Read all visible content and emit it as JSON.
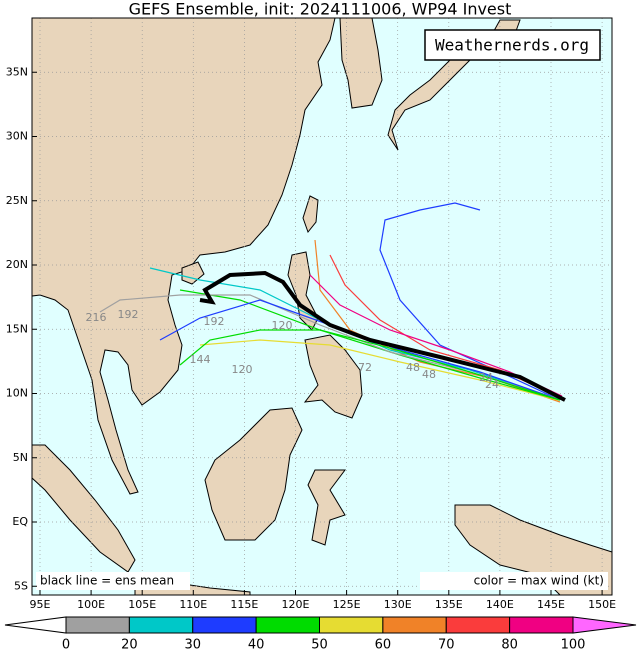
{
  "title": "GEFS Ensemble, init: 2024111006, WP94 Invest",
  "watermark": "Weathernerds.org",
  "map": {
    "lat_ticks": [
      {
        "value": 35,
        "label": "35N"
      },
      {
        "value": 30,
        "label": "30N"
      },
      {
        "value": 25,
        "label": "25N"
      },
      {
        "value": 20,
        "label": "20N"
      },
      {
        "value": 15,
        "label": "15N"
      },
      {
        "value": 10,
        "label": "10N"
      },
      {
        "value": 5,
        "label": "5N"
      },
      {
        "value": 0,
        "label": "EQ"
      },
      {
        "value": -5,
        "label": "5S"
      }
    ],
    "lon_ticks": [
      {
        "value": 95,
        "label": "95E"
      },
      {
        "value": 100,
        "label": "100E"
      },
      {
        "value": 105,
        "label": "105E"
      },
      {
        "value": 110,
        "label": "110E"
      },
      {
        "value": 115,
        "label": "115E"
      },
      {
        "value": 120,
        "label": "120E"
      },
      {
        "value": 125,
        "label": "125E"
      },
      {
        "value": 130,
        "label": "130E"
      },
      {
        "value": 135,
        "label": "135E"
      },
      {
        "value": 140,
        "label": "140E"
      },
      {
        "value": 145,
        "label": "145E"
      },
      {
        "value": 150,
        "label": "150E"
      }
    ]
  },
  "hour_labels": [
    216,
    192,
    192,
    144,
    120,
    120,
    72,
    48,
    48,
    24,
    24
  ],
  "legend": {
    "mean": "black line = ens mean",
    "color": "color = max wind (kt)"
  },
  "colorbar": {
    "ticks": [
      0,
      20,
      30,
      40,
      50,
      60,
      70,
      80,
      100
    ],
    "colors": [
      "#a0a0a0",
      "#00c8c8",
      "#1e3cff",
      "#00dc00",
      "#e6dc32",
      "#f08228",
      "#fa3c3c",
      "#f00082"
    ],
    "under": "#ffffff",
    "over": "#ff66ff"
  }
}
